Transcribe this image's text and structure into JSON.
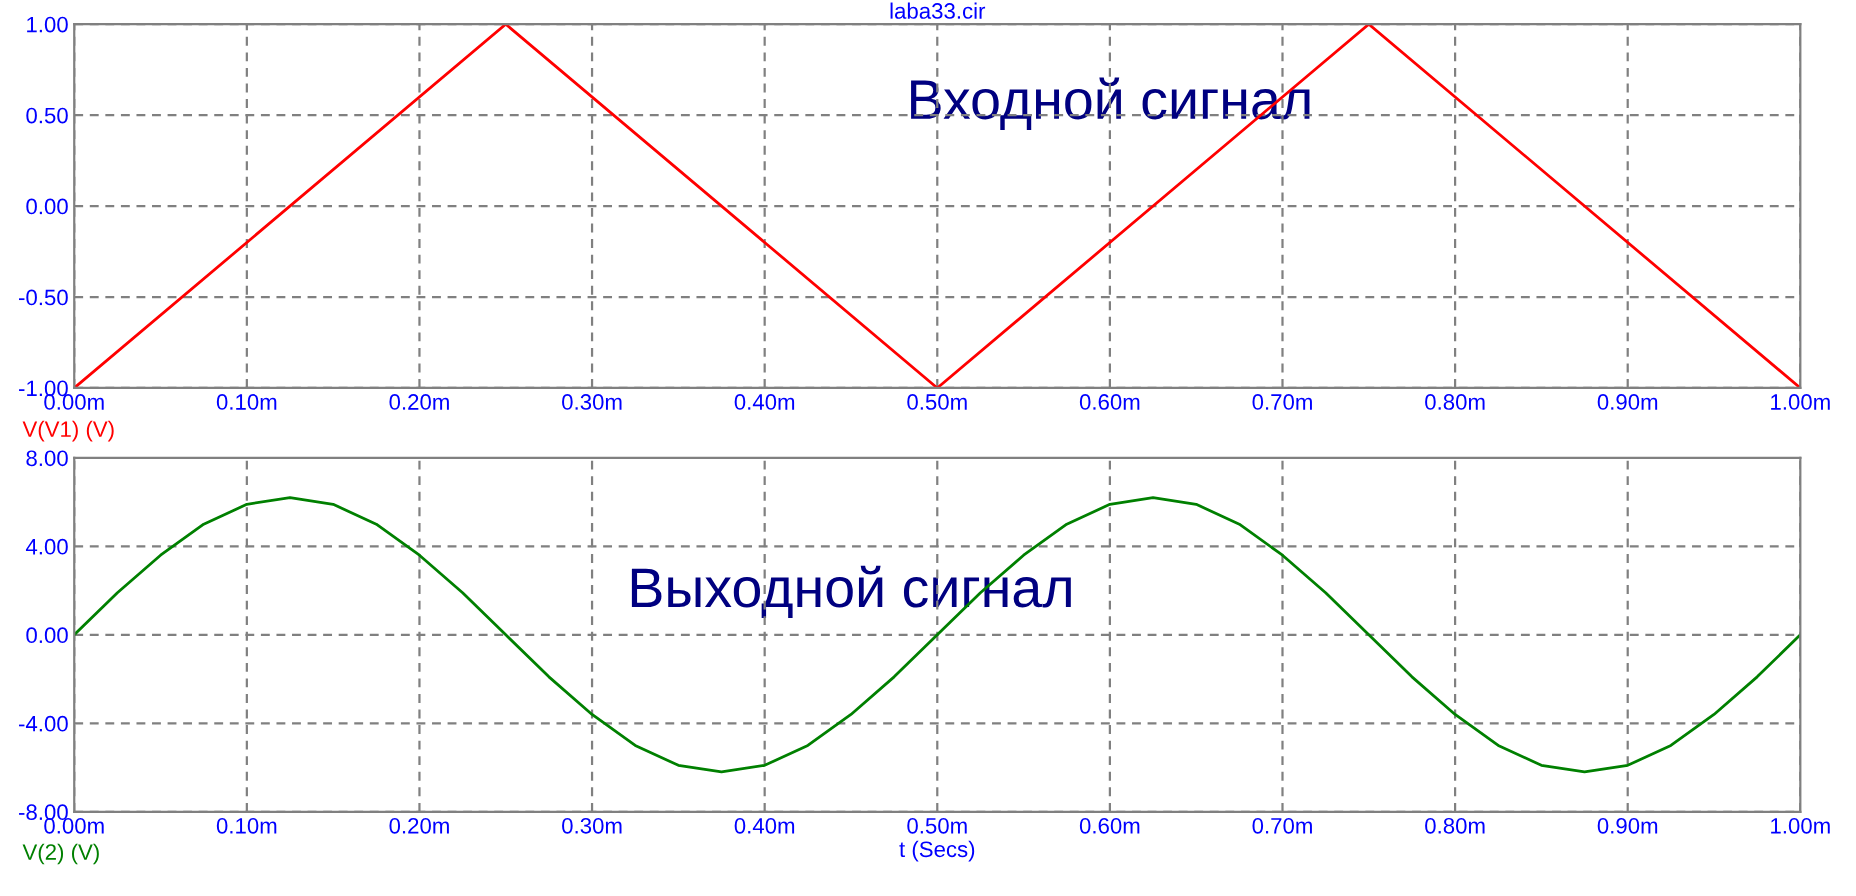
{
  "chart_data": [
    {
      "type": "line",
      "title": "laba33.cir",
      "x": [
        0,
        0.25,
        0.5,
        0.75,
        1.0
      ],
      "series": [
        {
          "name": "V(V1) (V)",
          "color": "#ff0000",
          "values": [
            -1.0,
            1.0,
            -1.0,
            1.0,
            -1.0
          ]
        }
      ],
      "xlim": [
        0,
        1.0
      ],
      "xticks": [
        {
          "value": 0,
          "label": "0.00m"
        },
        {
          "value": 0.1,
          "label": "0.10m"
        },
        {
          "value": 0.2,
          "label": "0.20m"
        },
        {
          "value": 0.3,
          "label": "0.30m"
        },
        {
          "value": 0.4,
          "label": "0.40m"
        },
        {
          "value": 0.5,
          "label": "0.50m"
        },
        {
          "value": 0.6,
          "label": "0.60m"
        },
        {
          "value": 0.7,
          "label": "0.70m"
        },
        {
          "value": 0.8,
          "label": "0.80m"
        },
        {
          "value": 0.9,
          "label": "0.90m"
        },
        {
          "value": 1.0,
          "label": "1.00m"
        }
      ],
      "ylim": [
        -1.0,
        1.0
      ],
      "yticks": [
        {
          "value": -1.0,
          "label": "-1.00"
        },
        {
          "value": -0.5,
          "label": "-0.50"
        },
        {
          "value": 0,
          "label": "0.00"
        },
        {
          "value": 0.5,
          "label": "0.50"
        },
        {
          "value": 1.0,
          "label": "1.00"
        }
      ],
      "grid": true,
      "legend": "bottom left",
      "annotations": [
        "Входной сигнал"
      ]
    },
    {
      "type": "line",
      "xlabel": "t (Secs)",
      "x": [
        0,
        0.025,
        0.05,
        0.075,
        0.1,
        0.125,
        0.15,
        0.175,
        0.2,
        0.225,
        0.25,
        0.275,
        0.3,
        0.325,
        0.35,
        0.375,
        0.4,
        0.425,
        0.45,
        0.475,
        0.5,
        0.525,
        0.55,
        0.575,
        0.6,
        0.625,
        0.65,
        0.675,
        0.7,
        0.725,
        0.75,
        0.775,
        0.8,
        0.825,
        0.85,
        0.875,
        0.9,
        0.925,
        0.95,
        0.975,
        1.0
      ],
      "series": [
        {
          "name": "V(2) (V)",
          "color": "#008000",
          "values": [
            0,
            1.9,
            3.6,
            5.0,
            5.9,
            6.2,
            5.9,
            5.0,
            3.6,
            1.9,
            0,
            -1.9,
            -3.6,
            -5.0,
            -5.9,
            -6.2,
            -5.9,
            -5.0,
            -3.6,
            -1.9,
            0,
            1.9,
            3.6,
            5.0,
            5.9,
            6.2,
            5.9,
            5.0,
            3.6,
            1.9,
            0,
            -1.9,
            -3.6,
            -5.0,
            -5.9,
            -6.2,
            -5.9,
            -5.0,
            -3.6,
            -1.9,
            0
          ]
        }
      ],
      "xlim": [
        0,
        1.0
      ],
      "xticks": [
        {
          "value": 0,
          "label": "0.00m"
        },
        {
          "value": 0.1,
          "label": "0.10m"
        },
        {
          "value": 0.2,
          "label": "0.20m"
        },
        {
          "value": 0.3,
          "label": "0.30m"
        },
        {
          "value": 0.4,
          "label": "0.40m"
        },
        {
          "value": 0.5,
          "label": "0.50m"
        },
        {
          "value": 0.6,
          "label": "0.60m"
        },
        {
          "value": 0.7,
          "label": "0.70m"
        },
        {
          "value": 0.8,
          "label": "0.80m"
        },
        {
          "value": 0.9,
          "label": "0.90m"
        },
        {
          "value": 1.0,
          "label": "1.00m"
        }
      ],
      "ylim": [
        -8.0,
        8.0
      ],
      "yticks": [
        {
          "value": -8.0,
          "label": "-8.00"
        },
        {
          "value": -4.0,
          "label": "-4.00"
        },
        {
          "value": 0,
          "label": "0.00"
        },
        {
          "value": 4.0,
          "label": "4.00"
        },
        {
          "value": 8.0,
          "label": "8.00"
        }
      ],
      "grid": true,
      "legend": "bottom left",
      "annotations": [
        "Выходной сигнал"
      ]
    }
  ]
}
